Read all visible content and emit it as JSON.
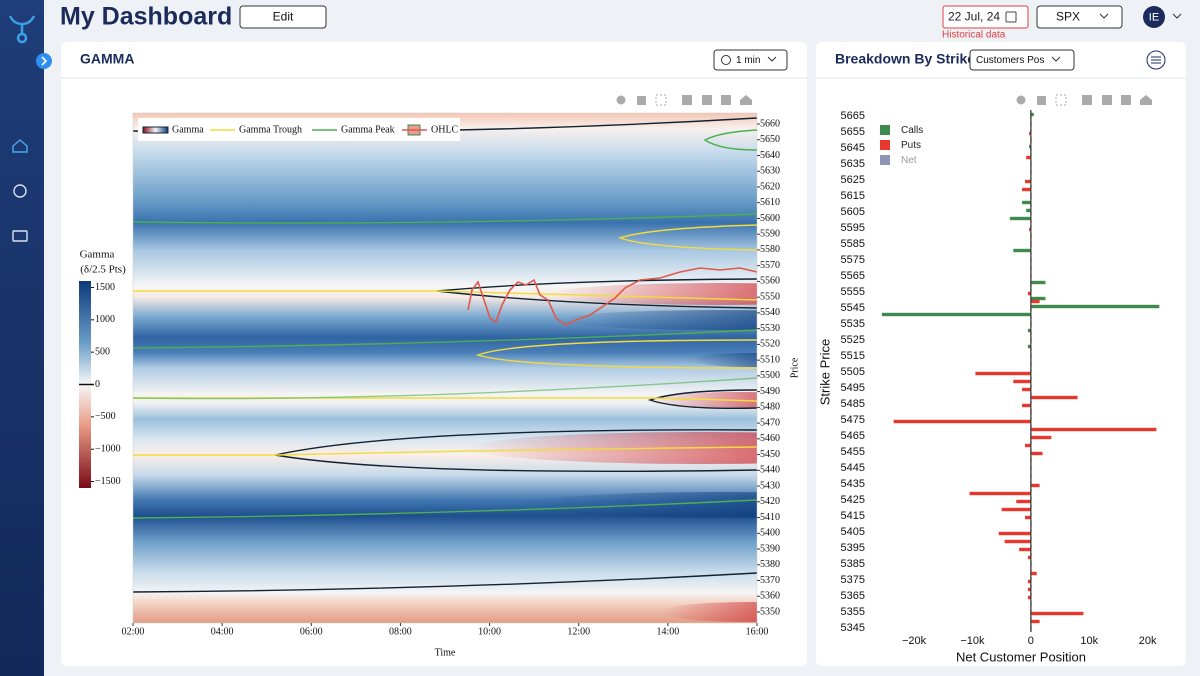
{
  "header": {
    "title": "My Dashboard",
    "edit": "Edit",
    "date": "22 Jul, 24",
    "date_note": "Historical data",
    "symbol": "SPX",
    "avatar": "IE"
  },
  "gamma_panel": {
    "title": "GAMMA",
    "interval": "1 min",
    "chart_data": {
      "type": "heatmap",
      "series": [
        {
          "name": "Gamma"
        },
        {
          "name": "Gamma Trough",
          "color": "#f2dc3c"
        },
        {
          "name": "Gamma Peak",
          "color": "#4caf50"
        },
        {
          "name": "OHLC",
          "color": "#e0584a"
        }
      ],
      "colorbar": {
        "title": "Gamma",
        "subtitle": "(δ/2.5 Pts)",
        "zlim": [
          -1600,
          1600
        ],
        "zticks": [
          1500,
          1000,
          500,
          0,
          {
            "value": -500,
            "label": "−500"
          },
          {
            "value": -1000,
            "label": "−1000"
          },
          {
            "value": -1500,
            "label": "−1500"
          }
        ]
      },
      "xlabel": "Time",
      "ylabel": "Price",
      "xlim": [
        2,
        16
      ],
      "xticks": [
        {
          "value": 2,
          "label": "02:00"
        },
        {
          "value": 4,
          "label": "04:00"
        },
        {
          "value": 6,
          "label": "06:00"
        },
        {
          "value": 8,
          "label": "08:00"
        },
        {
          "value": 10,
          "label": "10:00"
        },
        {
          "value": 12,
          "label": "12:00"
        },
        {
          "value": 14,
          "label": "14:00"
        },
        {
          "value": 16,
          "label": "16:00"
        }
      ],
      "ylim": [
        5343,
        5667
      ],
      "yticks": [
        5350,
        5360,
        5370,
        5380,
        5390,
        5400,
        5410,
        5420,
        5430,
        5440,
        5450,
        5460,
        5470,
        5480,
        5490,
        5500,
        5510,
        5520,
        5530,
        5540,
        5550,
        5560,
        5570,
        5580,
        5590,
        5600,
        5610,
        5620,
        5630,
        5640,
        5650,
        5660
      ]
    }
  },
  "breakdown_panel": {
    "title": "Breakdown By Strike",
    "mode": "Customers Pos",
    "chart_data": {
      "type": "barh",
      "categories": [
        5665,
        null,
        5655,
        null,
        5645,
        null,
        5635,
        null,
        5625,
        null,
        5615,
        null,
        5605,
        null,
        5595,
        null,
        5585,
        null,
        5575,
        null,
        5565,
        null,
        5555,
        null,
        5545,
        null,
        5535,
        null,
        5525,
        null,
        5515,
        null,
        5505,
        null,
        5495,
        null,
        5485,
        null,
        5475,
        null,
        5465,
        null,
        5455,
        null,
        5445,
        null,
        5435,
        null,
        5425,
        null,
        5415,
        null,
        5405,
        null,
        5395,
        null,
        5385,
        null,
        5375,
        null,
        5365,
        null,
        5355,
        null,
        5345
      ],
      "series": [
        {
          "name": "Calls",
          "color": "#3d8b4f",
          "values": [
            500,
            0,
            0,
            0,
            -300,
            0,
            0,
            0,
            0,
            0,
            0,
            -1500,
            -800,
            -3600,
            0,
            0,
            0,
            -3000,
            0,
            0,
            0,
            2500,
            0,
            2500,
            22000,
            -25500,
            0,
            -500,
            0,
            -500,
            0,
            0,
            0,
            0,
            0,
            0,
            0,
            0,
            0,
            0,
            0,
            0,
            0,
            0,
            0,
            0,
            0,
            0,
            0,
            0,
            0,
            0,
            0,
            0,
            0,
            0,
            0,
            0,
            0,
            0,
            0,
            0,
            0,
            0,
            0
          ]
        },
        {
          "name": "Puts",
          "color": "#e8372c",
          "values": [
            0,
            0,
            -300,
            0,
            0,
            -800,
            0,
            0,
            -1000,
            -1500,
            0,
            0,
            0,
            0,
            -300,
            0,
            0,
            0,
            0,
            0,
            0,
            0,
            -500,
            1500,
            0,
            0,
            0,
            0,
            0,
            0,
            0,
            0,
            -9500,
            -3000,
            -1500,
            8000,
            -1500,
            0,
            -23500,
            21500,
            3500,
            -1000,
            2000,
            0,
            0,
            0,
            1500,
            -10500,
            -2500,
            -5000,
            -1000,
            0,
            -5500,
            -4500,
            -2000,
            -500,
            0,
            1000,
            -500,
            -500,
            -500,
            0,
            9000,
            1500,
            0
          ]
        },
        {
          "name": "Net",
          "color": "#8c96b4"
        }
      ],
      "xlabel": "Net Customer Position",
      "ylabel": "Strike Price",
      "xlim": [
        -32000,
        24000
      ],
      "xticks": [
        {
          "value": -20000,
          "label": "−20k"
        },
        {
          "value": -10000,
          "label": "−10k"
        },
        0,
        {
          "value": 10000,
          "label": "10k"
        },
        {
          "value": 20000,
          "label": "20k"
        }
      ]
    }
  }
}
